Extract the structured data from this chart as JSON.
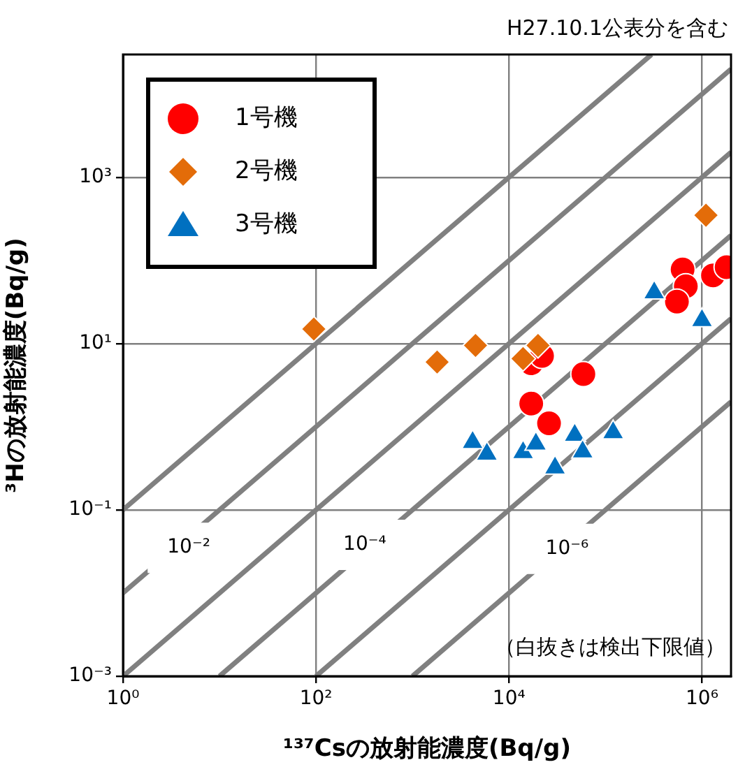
{
  "chart_data": {
    "type": "scatter",
    "xlabel": "¹³⁷Csの放射能濃度(Bq/g)",
    "ylabel": "³Hの放射能濃度(Bq/g)",
    "log": "xy",
    "grid": true,
    "legend": "top left",
    "xlim": [
      1,
      2000000
    ],
    "ylim": [
      0.001,
      30000
    ],
    "xticks": [
      {
        "value": 1,
        "label": "10⁰"
      },
      {
        "value": 100,
        "label": "10²"
      },
      {
        "value": 10000,
        "label": "10⁴"
      },
      {
        "value": 1000000,
        "label": "10⁶"
      }
    ],
    "yticks": [
      {
        "value": 0.001,
        "label": "10⁻³"
      },
      {
        "value": 0.1,
        "label": "10⁻¹"
      },
      {
        "value": 10,
        "label": "10¹"
      },
      {
        "value": 1000,
        "label": "10³"
      }
    ],
    "annotations": [
      "H27.10.1公表分を含む",
      "（白抜きは検出下限値）",
      {
        "text": "10⁻²",
        "x": 4.8,
        "y": 0.035
      },
      {
        "text": "10⁻⁴",
        "x": 320,
        "y": 0.038
      },
      {
        "text": "10⁻⁶",
        "x": 40000,
        "y": 0.034
      }
    ],
    "series": [
      {
        "name": "1号機",
        "marker": "circle",
        "color": "#ff0000",
        "x": [
          17000,
          22000,
          59000,
          17000,
          26000,
          630000,
          680000,
          550000,
          1300000,
          1800000
        ],
        "values": [
          5.8,
          7.1,
          4.3,
          1.9,
          1.1,
          78,
          49,
          32,
          66,
          83
        ]
      },
      {
        "name": "2号機",
        "marker": "diamond",
        "color": "#e36c09",
        "x": [
          95,
          1800,
          4500,
          14000,
          20000,
          1100000
        ],
        "values": [
          15,
          6.0,
          9.5,
          6.6,
          9.5,
          350
        ]
      },
      {
        "name": "3号機",
        "marker": "triangle",
        "color": "#0070c0",
        "x": [
          4200,
          5900,
          14000,
          19000,
          30000,
          48000,
          58000,
          120000,
          320000,
          1000000
        ],
        "values": [
          0.65,
          0.47,
          0.49,
          0.62,
          0.32,
          0.79,
          0.5,
          0.85,
          41,
          19
        ]
      },
      {
        "type": "line",
        "marker": "none",
        "color": "#808080",
        "x": [
          1,
          300000
        ],
        "values": [
          0.1,
          30000
        ]
      },
      {
        "type": "line",
        "marker": "none",
        "color": "#808080",
        "x": [
          1,
          2000000
        ],
        "values": [
          0.01,
          20000
        ]
      },
      {
        "type": "line",
        "marker": "none",
        "color": "#808080",
        "x": [
          1,
          2000000
        ],
        "values": [
          0.001,
          2000
        ]
      },
      {
        "type": "line",
        "marker": "none",
        "color": "#808080",
        "x": [
          10,
          2000000
        ],
        "values": [
          0.001,
          200
        ]
      },
      {
        "type": "line",
        "marker": "none",
        "color": "#808080",
        "x": [
          100,
          2000000
        ],
        "values": [
          0.001,
          20
        ]
      },
      {
        "type": "line",
        "marker": "none",
        "color": "#808080",
        "x": [
          1000,
          2000000
        ],
        "values": [
          0.001,
          2
        ]
      }
    ]
  }
}
